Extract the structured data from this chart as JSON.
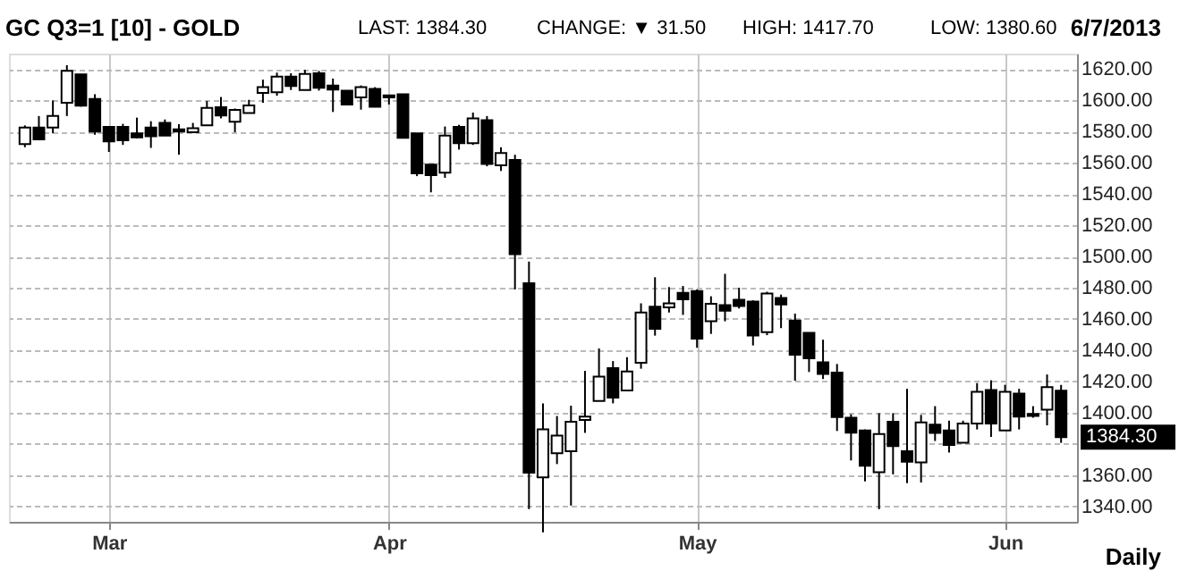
{
  "chart_data": {
    "type": "candlestick",
    "title": "GC Q3=1 [10] - GOLD",
    "categories": [
      null,
      null,
      null,
      null,
      null,
      null,
      "Mar",
      null,
      null,
      null,
      null,
      null,
      null,
      null,
      null,
      null,
      null,
      null,
      null,
      null,
      null,
      null,
      null,
      null,
      null,
      null,
      "Apr",
      null,
      null,
      null,
      null,
      null,
      null,
      null,
      null,
      null,
      null,
      null,
      null,
      null,
      null,
      null,
      null,
      null,
      null,
      null,
      null,
      null,
      "May",
      null,
      null,
      null,
      null,
      null,
      null,
      null,
      null,
      null,
      null,
      null,
      null,
      null,
      null,
      null,
      null,
      null,
      null,
      null,
      null,
      null,
      "Jun",
      null,
      null,
      null,
      null
    ],
    "ohlc": [
      [
        1572,
        1584,
        1570,
        1582.6
      ],
      [
        1582.6,
        1590,
        1575,
        1575
      ],
      [
        1582.6,
        1600,
        1579,
        1590
      ],
      [
        1598.5,
        1622.6,
        1590,
        1619
      ],
      [
        1616.7,
        1616.7,
        1596,
        1596.7
      ],
      [
        1601,
        1604,
        1578,
        1580
      ],
      [
        1583,
        1583,
        1567,
        1573.7
      ],
      [
        1583,
        1585,
        1571.5,
        1574.4
      ],
      [
        1578.9,
        1589,
        1575.6,
        1576.3
      ],
      [
        1582.6,
        1586.7,
        1569.6,
        1577
      ],
      [
        1585.6,
        1587.8,
        1577.4,
        1577.4
      ],
      [
        1581.5,
        1584.8,
        1565.2,
        1580
      ],
      [
        1579.6,
        1585.6,
        1579.6,
        1582.2
      ],
      [
        1584,
        1599.6,
        1584,
        1595.2
      ],
      [
        1595.6,
        1602.2,
        1588.5,
        1590.4
      ],
      [
        1586.3,
        1594.8,
        1579.6,
        1594
      ],
      [
        1591.9,
        1600.4,
        1591.9,
        1596.8
      ],
      [
        1604.8,
        1613.3,
        1598.5,
        1608.5
      ],
      [
        1605.2,
        1617.8,
        1603,
        1615.2
      ],
      [
        1615.2,
        1617.4,
        1606.7,
        1609.3
      ],
      [
        1606.7,
        1619.6,
        1606.7,
        1617
      ],
      [
        1617.4,
        1618.9,
        1606.3,
        1608.1
      ],
      [
        1609.6,
        1614,
        1592.6,
        1607
      ],
      [
        1606.3,
        1606.3,
        1597.4,
        1597.4
      ],
      [
        1601.9,
        1609.6,
        1594.1,
        1608.5
      ],
      [
        1607.4,
        1608.5,
        1595.9,
        1595.9
      ],
      [
        1603.3,
        1603.3,
        1597.4,
        1601.9
      ],
      [
        1604,
        1604,
        1576,
        1576
      ],
      [
        1578.9,
        1578.9,
        1551.5,
        1553.3
      ],
      [
        1558.9,
        1558.9,
        1541.1,
        1552.2
      ],
      [
        1553.7,
        1583.3,
        1550.4,
        1577.4
      ],
      [
        1583,
        1584.4,
        1568.5,
        1572.6
      ],
      [
        1572.6,
        1592.2,
        1571.5,
        1588.5
      ],
      [
        1587.4,
        1590,
        1557.8,
        1559.3
      ],
      [
        1558.5,
        1570,
        1554.8,
        1566.3
      ],
      [
        1561.9,
        1565.2,
        1478.9,
        1501.5
      ],
      [
        1482.9,
        1496.7,
        1338.1,
        1361.5
      ],
      [
        1358.5,
        1405.9,
        1323.3,
        1389.2
      ],
      [
        1374,
        1397.8,
        1367,
        1385.2
      ],
      [
        1375.2,
        1404.4,
        1340.4,
        1394.1
      ],
      [
        1395.2,
        1426.7,
        1387,
        1397.4
      ],
      [
        1407.4,
        1441.1,
        1407.4,
        1423
      ],
      [
        1428.5,
        1433,
        1405.9,
        1409.6
      ],
      [
        1414.1,
        1435.5,
        1414.1,
        1426.3
      ],
      [
        1431.9,
        1470,
        1428.1,
        1464.1
      ],
      [
        1467.8,
        1486.7,
        1449.3,
        1453.7
      ],
      [
        1467.4,
        1480.4,
        1464.1,
        1470
      ],
      [
        1476.7,
        1481.1,
        1462.6,
        1472.6
      ],
      [
        1477.8,
        1478.9,
        1441.5,
        1447.4
      ],
      [
        1458.5,
        1474.5,
        1450.4,
        1469.7
      ],
      [
        1468.9,
        1488.9,
        1458.5,
        1465.2
      ],
      [
        1472.2,
        1480,
        1466.7,
        1468.2
      ],
      [
        1471.1,
        1471.9,
        1443,
        1449.3
      ],
      [
        1451.5,
        1477.4,
        1449.6,
        1476.3
      ],
      [
        1473.4,
        1475.6,
        1454.1,
        1469.3
      ],
      [
        1458.9,
        1463.4,
        1420.4,
        1437.1
      ],
      [
        1451.1,
        1451.1,
        1426,
        1434.8
      ],
      [
        1432.2,
        1446.7,
        1421.5,
        1424.8
      ],
      [
        1425.6,
        1431.1,
        1388.2,
        1397.1
      ],
      [
        1396.7,
        1398.9,
        1369.3,
        1387.1
      ],
      [
        1388.5,
        1389.2,
        1355.9,
        1365.9
      ],
      [
        1361.8,
        1399.6,
        1338.1,
        1386.3
      ],
      [
        1394.1,
        1399.6,
        1360.4,
        1378.5
      ],
      [
        1375.2,
        1415.2,
        1354.8,
        1368.5
      ],
      [
        1368.1,
        1398.5,
        1355.2,
        1393.7
      ],
      [
        1392.2,
        1404.1,
        1381.8,
        1387
      ],
      [
        1388.5,
        1394.8,
        1374.4,
        1379.2
      ],
      [
        1380.7,
        1394.8,
        1380.7,
        1393
      ],
      [
        1393,
        1418.9,
        1389.2,
        1413.3
      ],
      [
        1414.4,
        1420.7,
        1384.4,
        1393
      ],
      [
        1388.5,
        1417.8,
        1388.5,
        1413.3
      ],
      [
        1412.2,
        1415.2,
        1389.2,
        1397.4
      ],
      [
        1399.2,
        1404.1,
        1396.7,
        1397.8
      ],
      [
        1401.8,
        1424.4,
        1391.8,
        1416.3
      ],
      [
        1414,
        1417.7,
        1380.6,
        1384.3
      ]
    ],
    "color": "#000000",
    "ylim": [
      1330,
      1630
    ],
    "yticks": [
      {
        "value": 1340,
        "label": "1340.00"
      },
      {
        "value": 1360,
        "label": "1360.00"
      },
      {
        "value": 1380,
        "label": null
      },
      {
        "value": 1400,
        "label": "1400.00"
      },
      {
        "value": 1420,
        "label": "1420.00"
      },
      {
        "value": 1440,
        "label": "1440.00"
      },
      {
        "value": 1460,
        "label": "1460.00"
      },
      {
        "value": 1480,
        "label": "1480.00"
      },
      {
        "value": 1500,
        "label": "1500.00"
      },
      {
        "value": 1520,
        "label": "1520.00"
      },
      {
        "value": 1540,
        "label": "1540.00"
      },
      {
        "value": 1560,
        "label": "1560.00"
      },
      {
        "value": 1580,
        "label": "1580.00"
      },
      {
        "value": 1600,
        "label": "1600.00"
      },
      {
        "value": 1620,
        "label": "1620.00"
      }
    ],
    "grid": true,
    "annotations": [
      "LAST: 1384.30",
      "CHANGE: ▼ 31.50",
      "HIGH: 1417.70",
      "LOW: 1380.60",
      "6/7/2013",
      "Daily",
      "1384.30"
    ]
  }
}
